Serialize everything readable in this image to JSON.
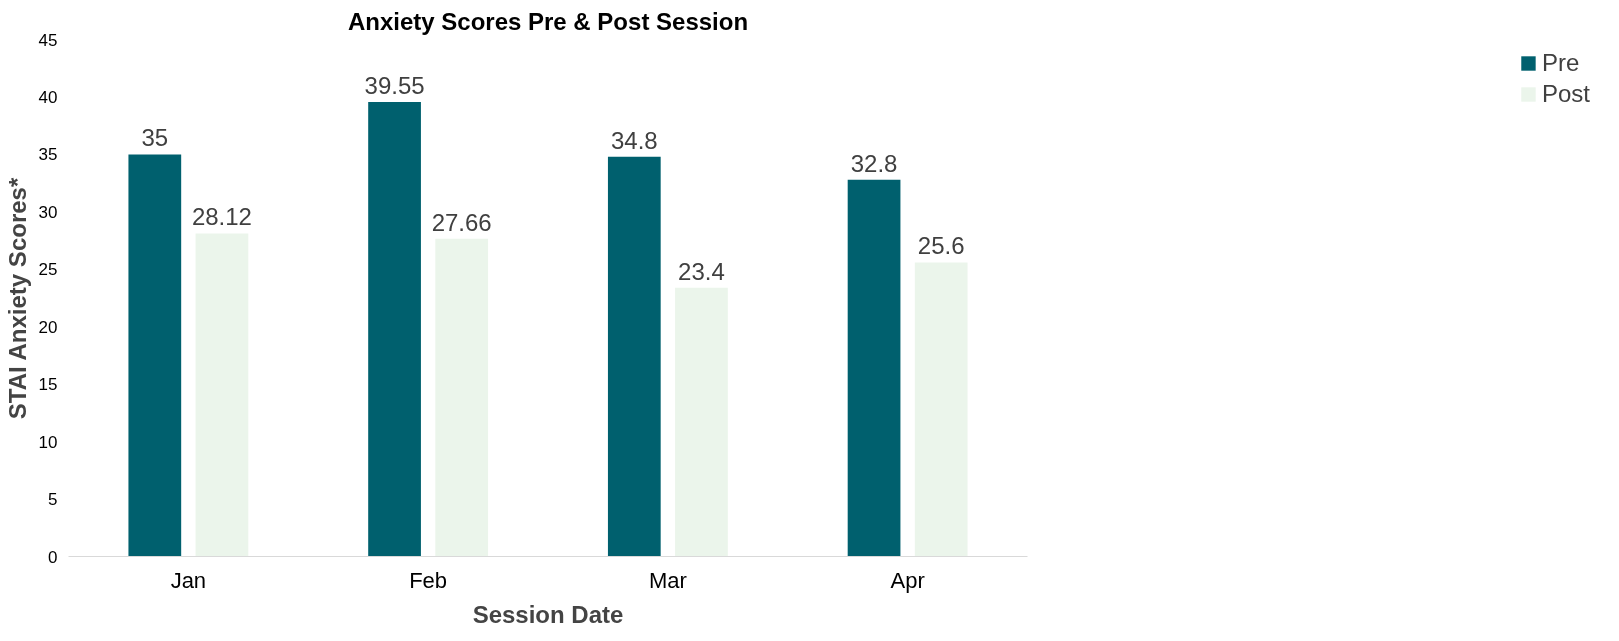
{
  "chart_data": {
    "type": "bar",
    "title": "Anxiety Scores Pre & Post Session",
    "xlabel": "Session Date",
    "ylabel": "STAI Anxiety Scores*",
    "categories": [
      "Jan",
      "Feb",
      "Mar",
      "Apr"
    ],
    "series": [
      {
        "name": "Pre",
        "color": "#00606e",
        "values": [
          35,
          39.55,
          34.8,
          32.8
        ]
      },
      {
        "name": "Post",
        "color": "#ebf5eb",
        "values": [
          28.12,
          27.66,
          23.4,
          25.6
        ]
      }
    ],
    "ylim": [
      0,
      45
    ],
    "yticks": [
      0,
      5,
      10,
      15,
      20,
      25,
      30,
      35,
      40,
      45
    ],
    "grid": false,
    "legend": "right",
    "data_labels": true
  }
}
